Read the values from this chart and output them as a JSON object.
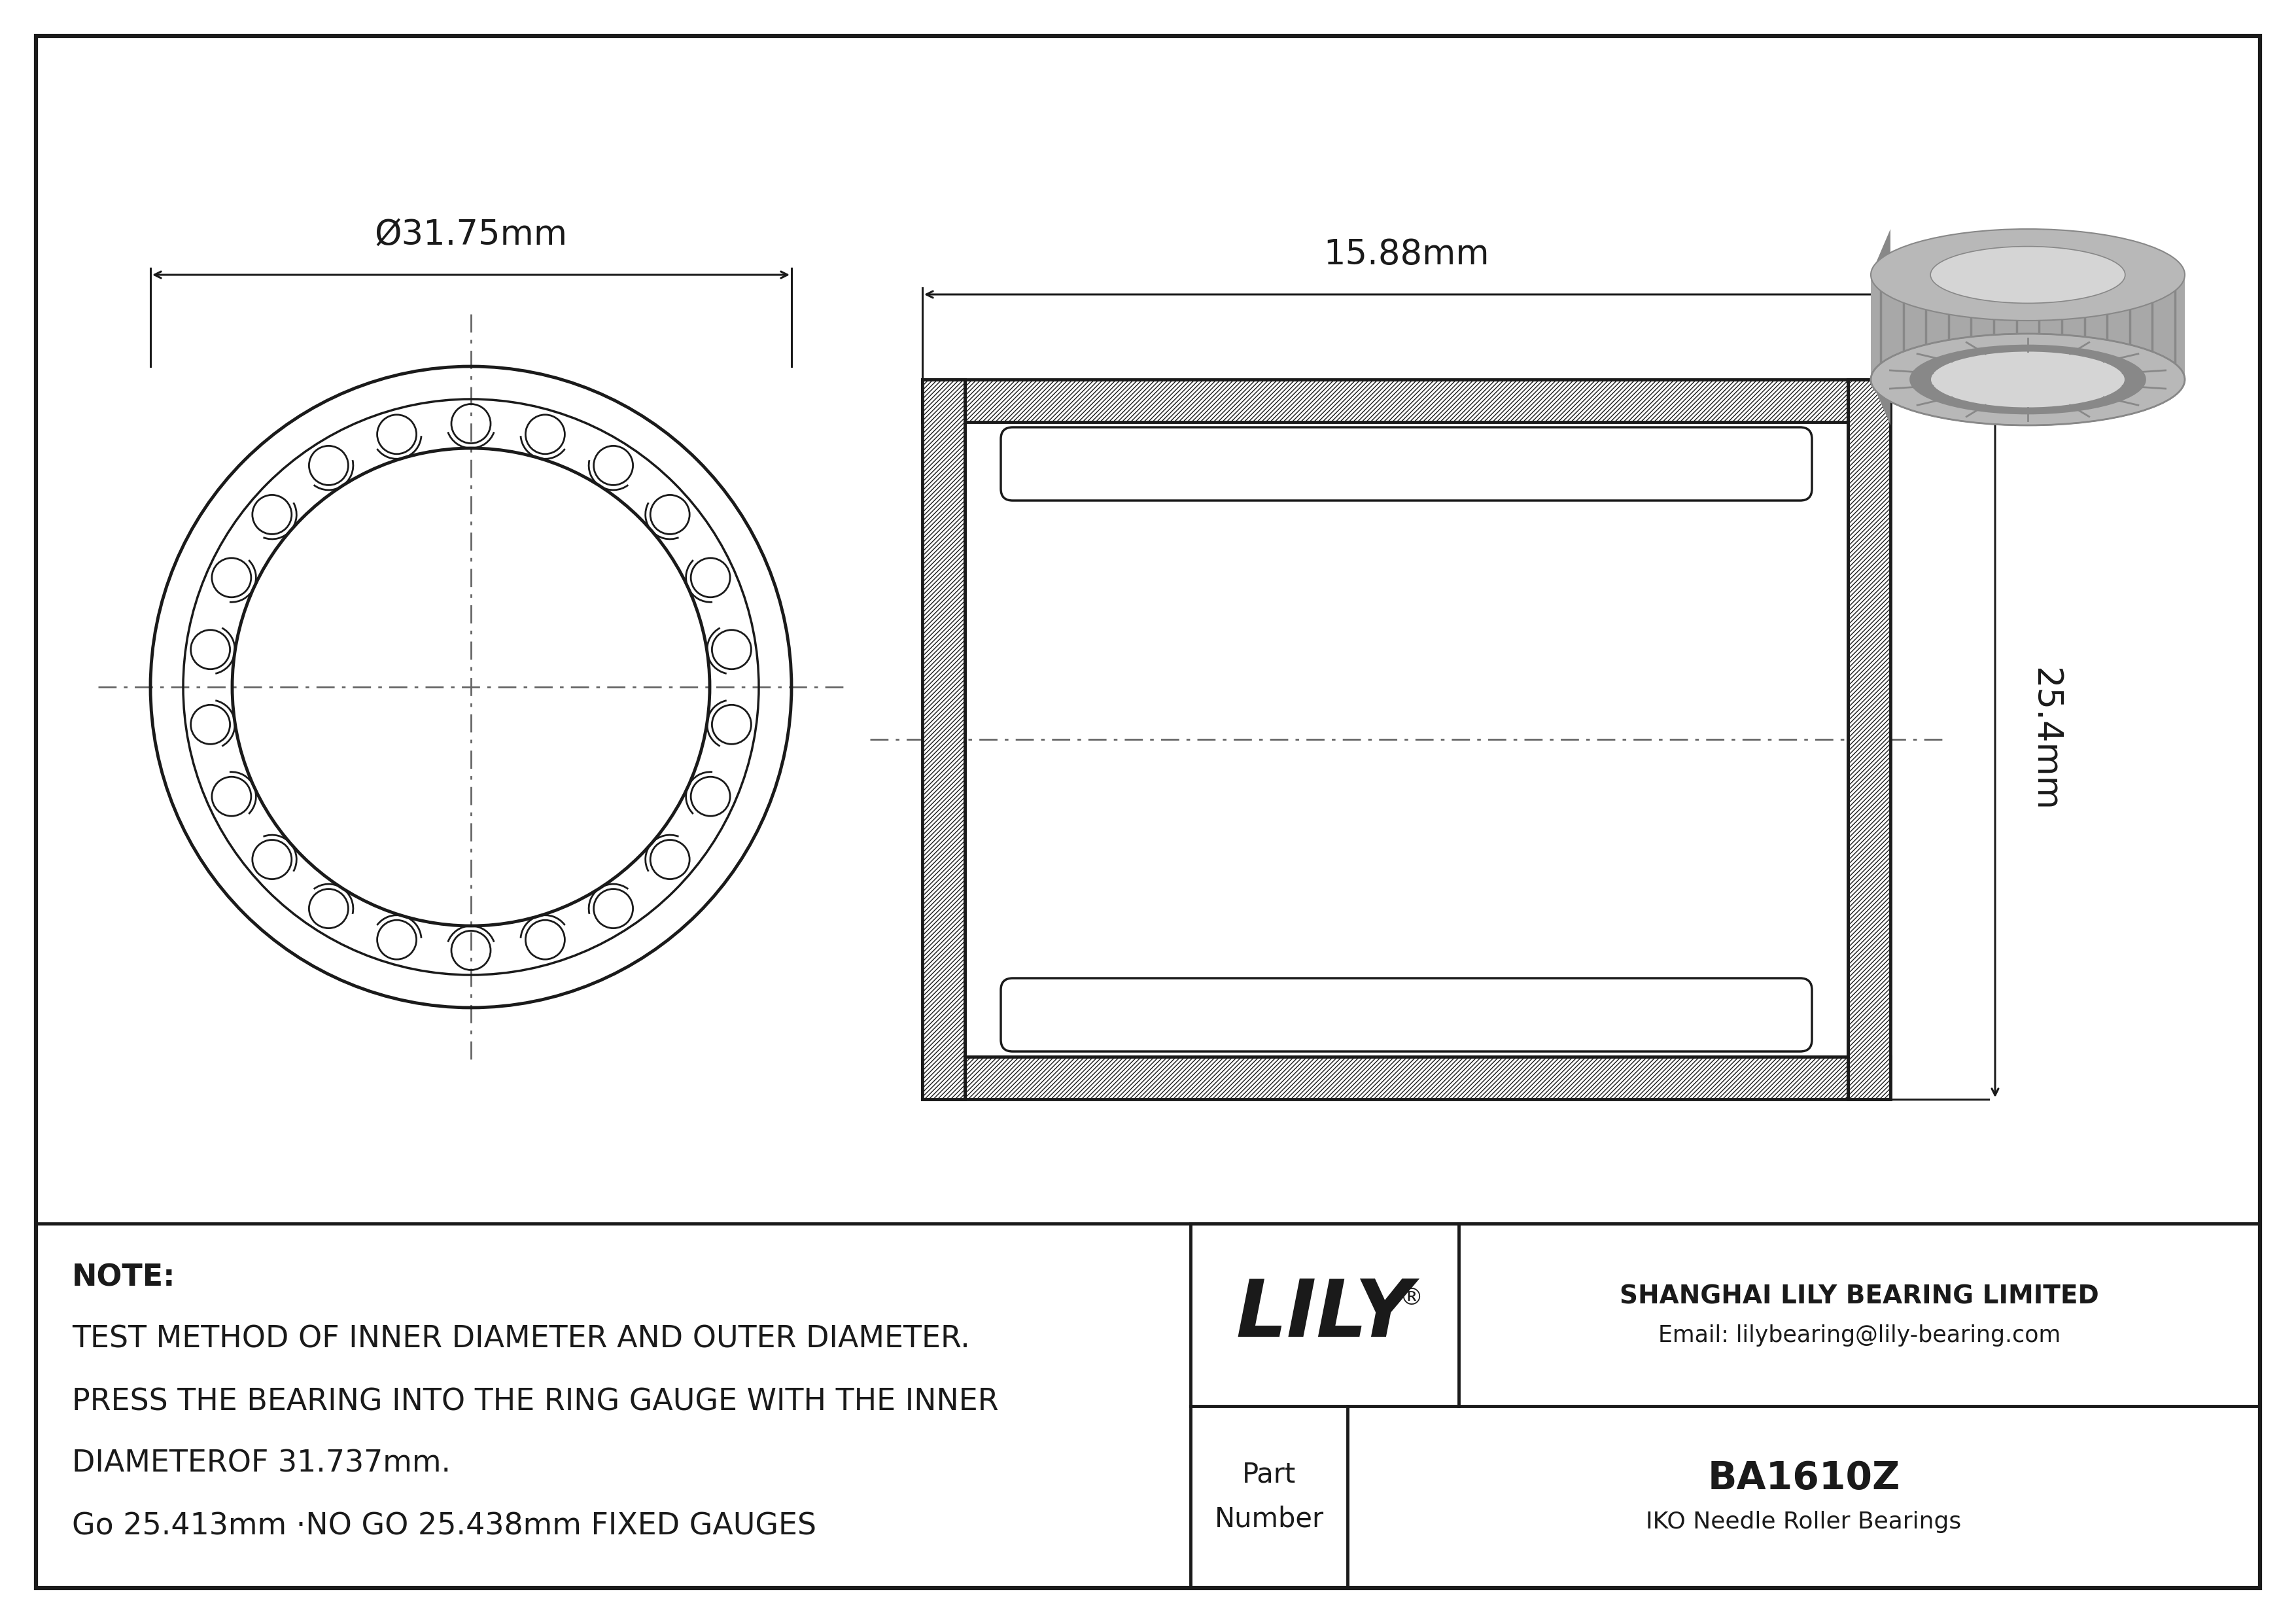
{
  "bg_color": "#ffffff",
  "line_color": "#1a1a1a",
  "outer_diameter_label": "Ø31.75mm",
  "width_label": "15.88mm",
  "height_label": "25.4mm",
  "note_lines": [
    "NOTE:",
    "TEST METHOD OF INNER DIAMETER AND OUTER DIAMETER.",
    "PRESS THE BEARING INTO THE RING GAUGE WITH THE INNER",
    "DIAMETEROF 31.737mm.",
    "Go 25.413mm ·NO GO 25.438mm FIXED GAUGES"
  ],
  "company_name": "SHANGHAI LILY BEARING LIMITED",
  "company_email": "Email: lilybearing@lily-bearing.com",
  "brand": "LILY",
  "registered": "®",
  "part_label": "Part\nNumber",
  "part_number": "BA1610Z",
  "bearing_type": "IKO Needle Roller Bearings",
  "fig_width": 35.1,
  "fig_height": 24.82,
  "n_needles": 22,
  "outer_r": 490,
  "shell_r": 440,
  "cage_r": 415,
  "inner_r": 365
}
